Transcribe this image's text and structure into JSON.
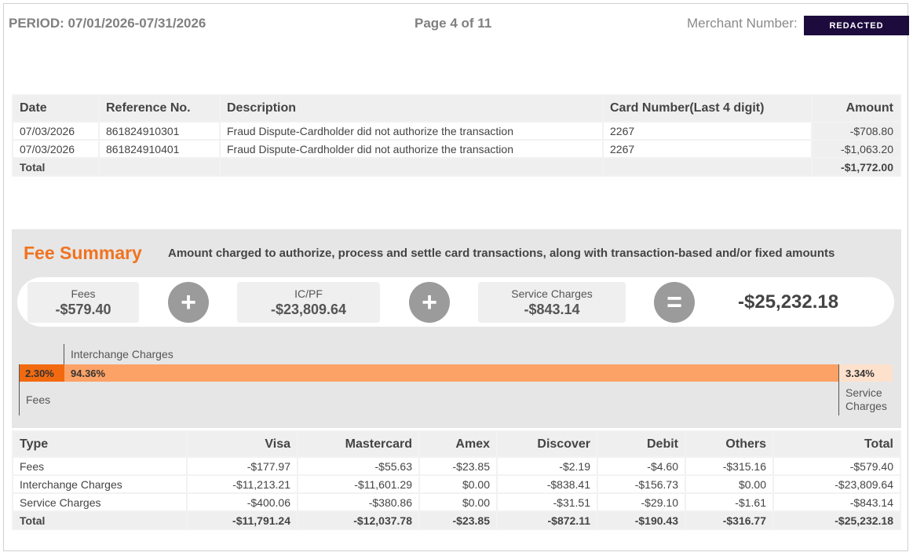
{
  "header": {
    "period": "PERIOD: 07/01/2026-07/31/2026",
    "page": "Page 4 of 11",
    "merchant_label": "Merchant Number:",
    "redacted": "REDACTED"
  },
  "transactions": {
    "columns": [
      "Date",
      "Reference No.",
      "Description",
      "Card Number(Last 4 digit)",
      "Amount"
    ],
    "rows": [
      {
        "date": "07/03/2026",
        "ref": "861824910301",
        "desc": "Fraud Dispute-Cardholder did not authorize the transaction",
        "card": "2267",
        "amount": "-$708.80"
      },
      {
        "date": "07/03/2026",
        "ref": "861824910401",
        "desc": "Fraud Dispute-Cardholder did not authorize the transaction",
        "card": "2267",
        "amount": "-$1,063.20"
      }
    ],
    "total_label": "Total",
    "total_amount": "-$1,772.00"
  },
  "fee_summary": {
    "title": "Fee Summary",
    "description": "Amount charged to authorize, process and settle card transactions, along with transaction-based and/or fixed amounts",
    "fees_label": "Fees",
    "fees_value": "-$579.40",
    "icpf_label": "IC/PF",
    "icpf_value": "-$23,809.64",
    "service_label": "Service Charges",
    "service_value": "-$843.14",
    "plus": "+",
    "equals": "=",
    "grand_total": "-$25,232.18"
  },
  "breakdown": {
    "fees_pct": "2.30%",
    "interchange_pct": "94.36%",
    "service_pct": "3.34%",
    "fees_share": 2.3,
    "interchange_share": 94.36,
    "service_share": 3.34,
    "interchange_label": "Interchange Charges",
    "fees_label": "Fees",
    "service_label_1": "Service",
    "service_label_2": "Charges",
    "colors": {
      "fees": "#f26a0f",
      "interchange": "#fca266",
      "service": "#fde1cc"
    }
  },
  "type_table": {
    "columns": [
      "Type",
      "Visa",
      "Mastercard",
      "Amex",
      "Discover",
      "Debit",
      "Others",
      "Total"
    ],
    "rows": [
      [
        "Fees",
        "-$177.97",
        "-$55.63",
        "-$23.85",
        "-$2.19",
        "-$4.60",
        "-$315.16",
        "-$579.40"
      ],
      [
        "Interchange Charges",
        "-$11,213.21",
        "-$11,601.29",
        "$0.00",
        "-$838.41",
        "-$156.73",
        "$0.00",
        "-$23,809.64"
      ],
      [
        "Service Charges",
        "-$400.06",
        "-$380.86",
        "$0.00",
        "-$31.51",
        "-$29.10",
        "-$1.61",
        "-$843.14"
      ]
    ],
    "total_row": [
      "Total",
      "-$11,791.24",
      "-$12,037.78",
      "-$23.85",
      "-$872.11",
      "-$190.43",
      "-$316.77",
      "-$25,232.18"
    ]
  }
}
